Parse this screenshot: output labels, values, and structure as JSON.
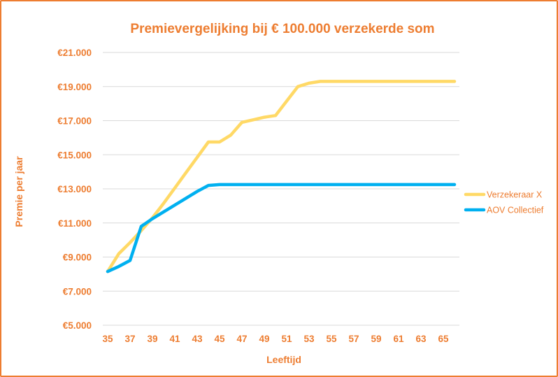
{
  "chart_data": {
    "type": "line",
    "title": "Premievergelijking  bij € 100.000  verzekerde som",
    "xlabel": "Leeftijd",
    "ylabel": "Premie per jaar",
    "x": [
      35,
      36,
      37,
      38,
      39,
      40,
      41,
      42,
      43,
      44,
      45,
      46,
      47,
      48,
      49,
      50,
      51,
      52,
      53,
      54,
      55,
      56,
      57,
      58,
      59,
      60,
      61,
      62,
      63,
      64,
      65,
      66
    ],
    "x_ticks": [
      "35",
      "37",
      "39",
      "41",
      "43",
      "45",
      "47",
      "49",
      "51",
      "53",
      "55",
      "57",
      "59",
      "61",
      "63",
      "65"
    ],
    "y_ticks": [
      "€5.000",
      "€7.000",
      "€9.000",
      "€11.000",
      "€13.000",
      "€15.000",
      "€17.000",
      "€19.000",
      "€21.000"
    ],
    "ylim": [
      5000,
      21000
    ],
    "grid": true,
    "legend_position": "right",
    "series": [
      {
        "name": "Verzekeraar X",
        "color": "#FFD966",
        "values": [
          8150,
          9200,
          9850,
          10550,
          11300,
          12150,
          13050,
          13950,
          14850,
          15750,
          15750,
          16150,
          16900,
          17050,
          17200,
          17300,
          18150,
          19000,
          19200,
          19300,
          19300,
          19300,
          19300,
          19300,
          19300,
          19300,
          19300,
          19300,
          19300,
          19300,
          19300,
          19300
        ]
      },
      {
        "name": "AOV Collectief",
        "color": "#00B0F0",
        "values": [
          8150,
          8450,
          8800,
          10800,
          11250,
          11650,
          12050,
          12450,
          12850,
          13200,
          13250,
          13250,
          13250,
          13250,
          13250,
          13250,
          13250,
          13250,
          13250,
          13250,
          13250,
          13250,
          13250,
          13250,
          13250,
          13250,
          13250,
          13250,
          13250,
          13250,
          13250,
          13250
        ]
      }
    ]
  }
}
